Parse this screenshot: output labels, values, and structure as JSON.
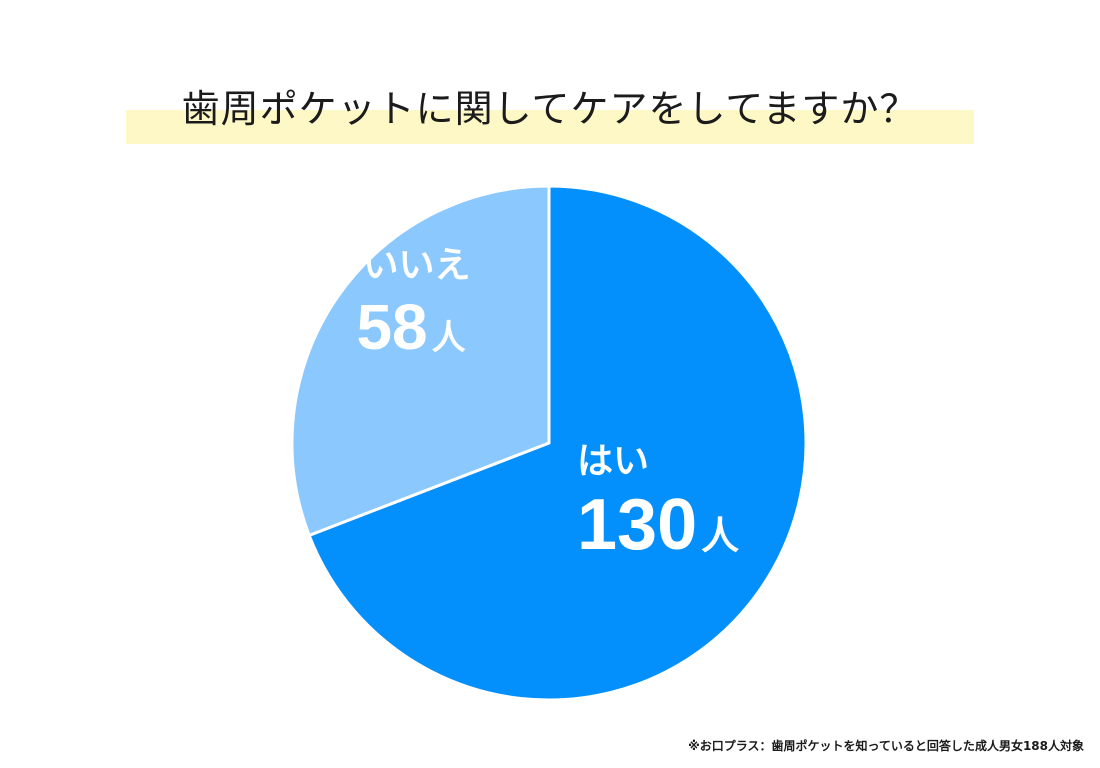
{
  "chart_data": {
    "type": "pie",
    "title": "歯周ポケットに関してケアをしてますか？",
    "unit": "人",
    "slices": [
      {
        "label": "はい",
        "value": 130,
        "color": "#038ffc"
      },
      {
        "label": "いいえ",
        "value": 58,
        "color": "#8bc8fd"
      }
    ],
    "start_angle_deg": 0,
    "direction": "clockwise"
  },
  "footnote": "※お口プラス：歯周ポケットを知っていると回答した成人男女188人対象",
  "colors": {
    "title_highlight": "#fdf8c6",
    "label_text": "#ffffff",
    "slice_border": "#ffffff"
  }
}
